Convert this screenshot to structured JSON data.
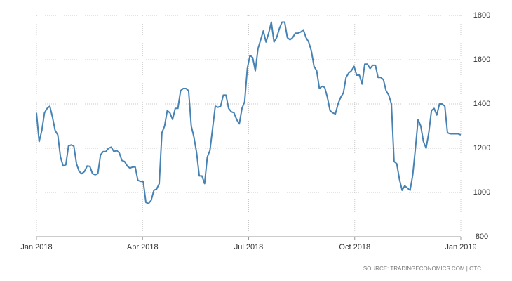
{
  "chart_data": {
    "type": "line",
    "x_labels": [
      "Jan 2018",
      "Apr 2018",
      "Jul 2018",
      "Oct 2018",
      "Jan 2019"
    ],
    "series": [
      {
        "color": "#4682b4",
        "values": [
          1360,
          1230,
          1280,
          1360,
          1380,
          1390,
          1340,
          1280,
          1260,
          1160,
          1120,
          1125,
          1210,
          1215,
          1210,
          1130,
          1095,
          1085,
          1095,
          1120,
          1118,
          1085,
          1080,
          1085,
          1170,
          1185,
          1185,
          1200,
          1205,
          1185,
          1190,
          1180,
          1145,
          1140,
          1120,
          1110,
          1115,
          1115,
          1055,
          1050,
          1050,
          955,
          950,
          965,
          1010,
          1015,
          1040,
          1270,
          1300,
          1370,
          1360,
          1330,
          1380,
          1380,
          1460,
          1470,
          1470,
          1460,
          1300,
          1250,
          1180,
          1075,
          1075,
          1040,
          1160,
          1190,
          1290,
          1390,
          1385,
          1390,
          1440,
          1440,
          1380,
          1365,
          1360,
          1330,
          1310,
          1380,
          1410,
          1560,
          1620,
          1610,
          1550,
          1650,
          1690,
          1730,
          1680,
          1720,
          1770,
          1680,
          1700,
          1740,
          1770,
          1770,
          1700,
          1690,
          1700,
          1720,
          1720,
          1725,
          1735,
          1700,
          1680,
          1640,
          1570,
          1550,
          1470,
          1480,
          1475,
          1430,
          1370,
          1360,
          1355,
          1400,
          1430,
          1450,
          1520,
          1540,
          1550,
          1570,
          1530,
          1530,
          1490,
          1580,
          1580,
          1560,
          1575,
          1575,
          1520,
          1520,
          1510,
          1460,
          1440,
          1400,
          1140,
          1130,
          1060,
          1010,
          1030,
          1020,
          1010,
          1080,
          1200,
          1330,
          1300,
          1230,
          1200,
          1270,
          1370,
          1380,
          1350,
          1400,
          1400,
          1390,
          1270,
          1265,
          1265,
          1265,
          1265,
          1260
        ]
      }
    ],
    "ylim": [
      800,
      1800
    ],
    "yticks": [
      800,
      1000,
      1200,
      1400,
      1600,
      1800
    ],
    "grid": true,
    "source": "SOURCE: TRADINGECONOMICS.COM | OTC"
  }
}
